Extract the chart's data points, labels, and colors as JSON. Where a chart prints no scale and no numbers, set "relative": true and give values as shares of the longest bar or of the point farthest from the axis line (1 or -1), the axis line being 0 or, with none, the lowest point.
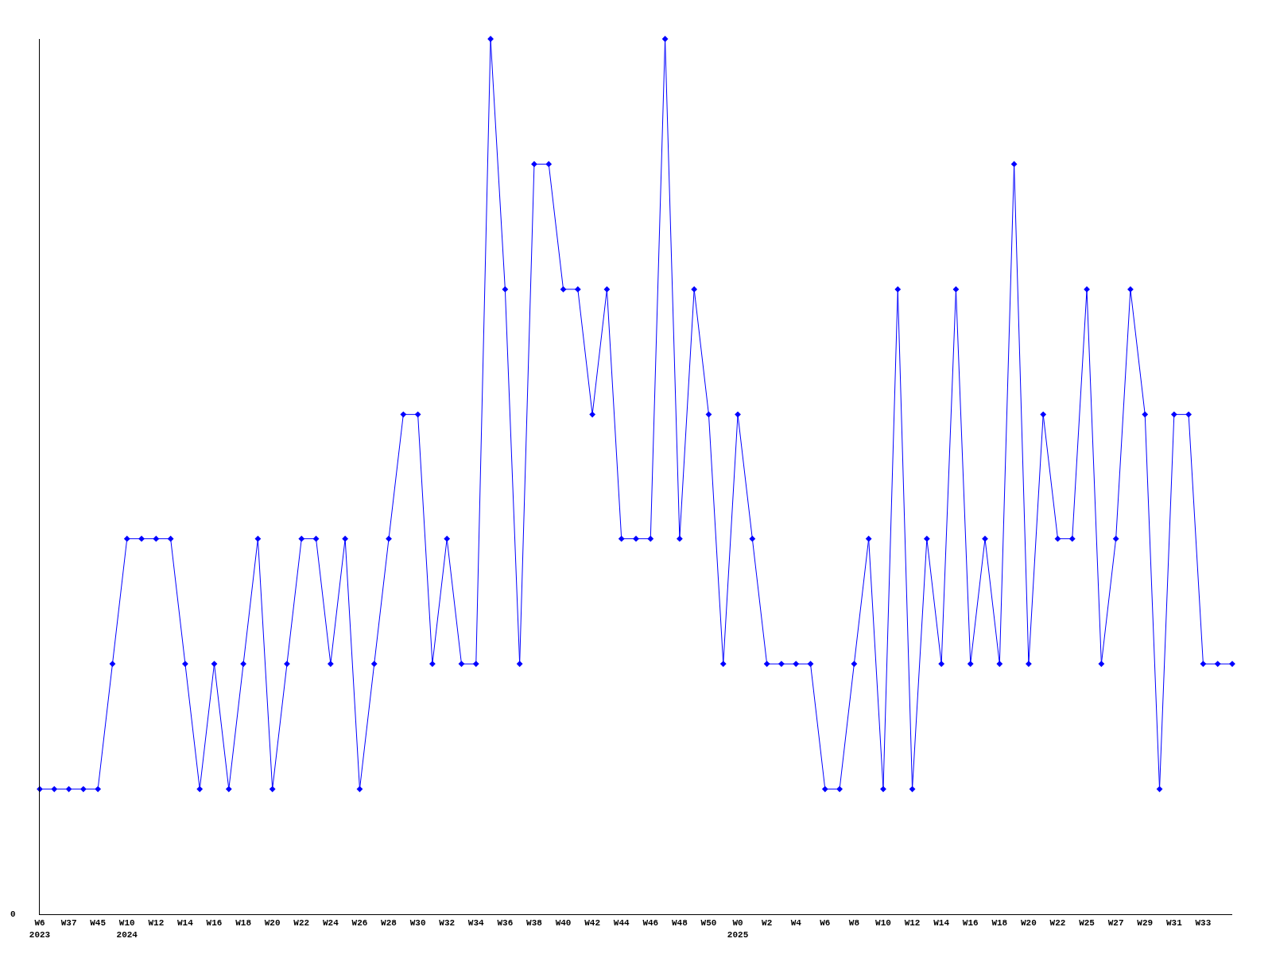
{
  "chart_data": {
    "type": "line",
    "relative": true,
    "color": "#0000ff",
    "marker": "diamond",
    "line_style": "solid",
    "legend": false,
    "categories": [
      "W6\n2023",
      null,
      "W37",
      null,
      "W45",
      null,
      "W10\n2024",
      null,
      "W12",
      null,
      "W14",
      null,
      "W16",
      null,
      "W18",
      null,
      "W20",
      null,
      "W22",
      null,
      "W24",
      null,
      "W26",
      null,
      "W28",
      null,
      "W30",
      null,
      "W32",
      null,
      "W34",
      null,
      "W36",
      null,
      "W38",
      null,
      "W40",
      null,
      "W42",
      null,
      "W44",
      null,
      "W46",
      null,
      "W48",
      null,
      "W50",
      null,
      "W0\n2025",
      null,
      "W2",
      null,
      "W4",
      null,
      "W6",
      null,
      "W8",
      null,
      "W10",
      null,
      "W12",
      null,
      "W14",
      null,
      "W16",
      null,
      "W18",
      null,
      "W20",
      null,
      "W22",
      null,
      "W25",
      null,
      "W27",
      null,
      "W29",
      null,
      "W31",
      null,
      "W33",
      null,
      null
    ],
    "values": [
      0.143,
      0.143,
      0.143,
      0.143,
      0.143,
      0.286,
      0.429,
      0.429,
      0.429,
      0.429,
      0.286,
      0.143,
      0.286,
      0.143,
      0.286,
      0.429,
      0.143,
      0.286,
      0.429,
      0.429,
      0.286,
      0.429,
      0.143,
      0.286,
      0.429,
      0.571,
      0.571,
      0.286,
      0.429,
      0.286,
      0.286,
      1,
      0.714,
      0.286,
      0.857,
      0.857,
      0.714,
      0.714,
      0.571,
      0.714,
      0.429,
      0.429,
      0.429,
      1,
      0.429,
      0.714,
      0.571,
      0.286,
      0.571,
      0.429,
      0.286,
      0.286,
      0.286,
      0.286,
      0.143,
      0.143,
      0.286,
      0.429,
      0.143,
      0.714,
      0.143,
      0.429,
      0.286,
      0.714,
      0.286,
      0.429,
      0.286,
      0.857,
      0.286,
      0.571,
      0.429,
      0.429,
      0.714,
      0.286,
      0.429,
      0.714,
      0.571,
      0.143,
      0.571,
      0.571,
      0.286,
      0.286,
      0.286
    ],
    "annotations": [
      "0"
    ]
  }
}
